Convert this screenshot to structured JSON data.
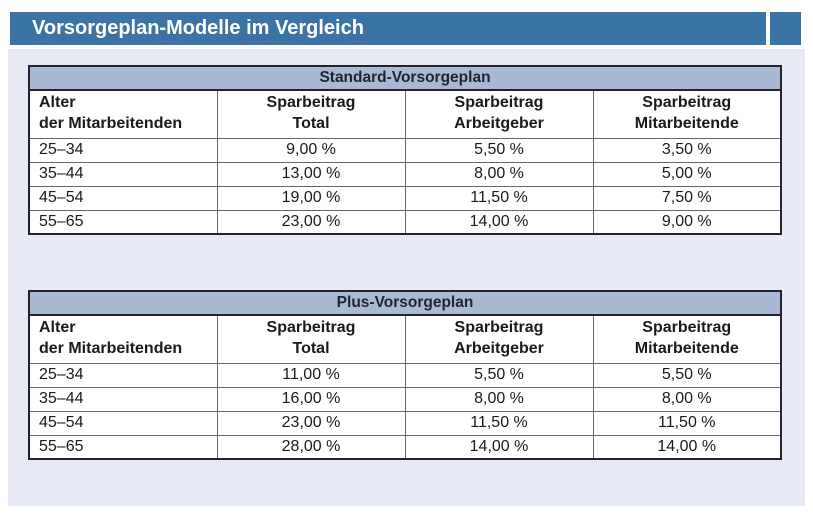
{
  "page": {
    "title": "Vorsorgeplan-Modelle im Vergleich"
  },
  "colors": {
    "header_bar_blue": "#3b74a4",
    "panel_background": "#e7e9f4",
    "table_title_background": "#a9b8d3",
    "outer_border": "#23232d",
    "inner_border": "#66666c",
    "body_text": "#1a1a1a",
    "table_title_text": "#1c2533",
    "header_bar_text": "#ffffff"
  },
  "tables": [
    {
      "title": "Standard-Vorsorgeplan",
      "columns": [
        {
          "line1": "Alter",
          "line2": "der Mitarbeitenden"
        },
        {
          "line1": "Sparbeitrag",
          "line2": "Total"
        },
        {
          "line1": "Sparbeitrag",
          "line2": "Arbeitgeber"
        },
        {
          "line1": "Sparbeitrag",
          "line2": "Mitarbeitende"
        }
      ],
      "rows": [
        [
          "25–34",
          "9,00 %",
          "5,50 %",
          "3,50 %"
        ],
        [
          "35–44",
          "13,00 %",
          "8,00 %",
          "5,00 %"
        ],
        [
          "45–54",
          "19,00 %",
          "11,50 %",
          "7,50 %"
        ],
        [
          "55–65",
          "23,00 %",
          "14,00 %",
          "9,00 %"
        ]
      ]
    },
    {
      "title": "Plus-Vorsorgeplan",
      "columns": [
        {
          "line1": "Alter",
          "line2": "der Mitarbeitenden"
        },
        {
          "line1": "Sparbeitrag",
          "line2": "Total"
        },
        {
          "line1": "Sparbeitrag",
          "line2": "Arbeitgeber"
        },
        {
          "line1": "Sparbeitrag",
          "line2": "Mitarbeitende"
        }
      ],
      "rows": [
        [
          "25–34",
          "11,00 %",
          "5,50 %",
          "5,50 %"
        ],
        [
          "35–44",
          "16,00 %",
          "8,00 %",
          "8,00 %"
        ],
        [
          "45–54",
          "23,00 %",
          "11,50 %",
          "11,50 %"
        ],
        [
          "55–65",
          "28,00 %",
          "14,00 %",
          "14,00 %"
        ]
      ]
    }
  ]
}
